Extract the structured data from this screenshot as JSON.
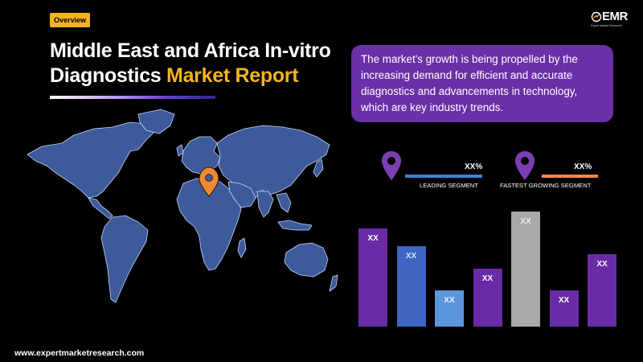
{
  "header": {
    "badge": "Overview",
    "title_line1": "Middle East and Africa In-vitro",
    "title_line2_prefix": "Diagnostics ",
    "title_line2_highlight": "Market Report"
  },
  "logo": {
    "word": "EMR",
    "tagline": "Expert Market Research"
  },
  "callout": {
    "text": "The market's growth is being propelled by the increasing demand for efficient and accurate diagnostics and advancements in technology, which are key industry trends."
  },
  "segments": [
    {
      "value": "XX%",
      "label": "LEADING SEGMENT",
      "line_color": "#3a86d1",
      "pin_color": "#7a3fb0"
    },
    {
      "value": "XX%",
      "label": "FASTEST GROWING SEGMENT",
      "line_color": "#f08a45",
      "pin_color": "#7a3fb0"
    }
  ],
  "chart_data": {
    "type": "bar",
    "categories": [
      "",
      "",
      "",
      "",
      "",
      "",
      ""
    ],
    "values": [
      122,
      100,
      45,
      72,
      143,
      45,
      90
    ],
    "data_labels": [
      "XX",
      "XX",
      "XX",
      "XX",
      "XX",
      "XX",
      "XX"
    ],
    "colors": [
      "#6a2ba6",
      "#3e66c2",
      "#5b95dc",
      "#6a2ba6",
      "#a9a9a9",
      "#6a2ba6",
      "#6a2ba6"
    ],
    "label_colors": [
      "#ffffff",
      "#d9e3ff",
      "#e6f0ff",
      "#ffffff",
      "#eeeeee",
      "#ffffff",
      "#ffffff"
    ],
    "title": "",
    "xlabel": "",
    "ylabel": "",
    "grid": false
  },
  "map": {
    "fill": "#3d5a9a",
    "stroke": "#c9d6ff",
    "marker_color": "#f08a30",
    "marker": "location-pin-icon"
  },
  "footer": {
    "website": "www.expertmarketresearch.com"
  }
}
